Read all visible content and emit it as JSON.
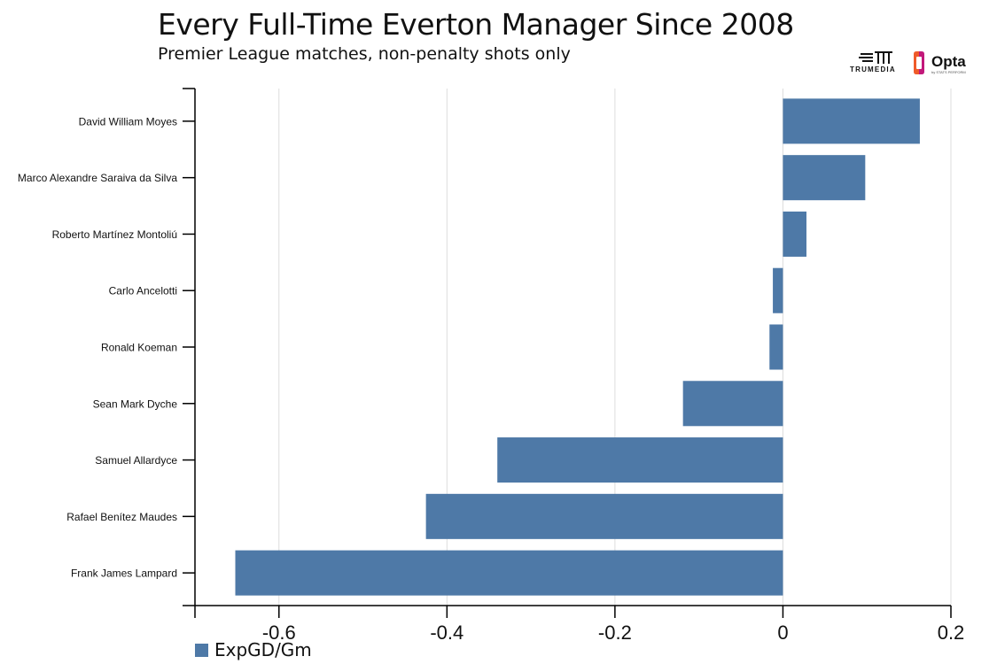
{
  "header": {
    "title": "Every Full-Time Everton Manager Since 2008",
    "subtitle": "Premier League matches, non-penalty shots only"
  },
  "logos": {
    "trumedia_text": "TRUMEDIA",
    "opta_text": "Opta",
    "opta_sub": "by STATS PERFORM"
  },
  "colors": {
    "bar": "#4e79a7",
    "grid": "#dddddd",
    "axis": "#000000"
  },
  "chart_data": {
    "type": "bar",
    "orientation": "horizontal",
    "categories": [
      "David William Moyes",
      "Marco Alexandre Saraiva da Silva",
      "Roberto Martínez Montoliú",
      "Carlo Ancelotti",
      "Ronald Koeman",
      "Sean Mark Dyche",
      "Samuel Allardyce",
      "Rafael Benítez Maudes",
      "Frank James Lampard"
    ],
    "series": [
      {
        "name": "ExpGD/Gm",
        "values": [
          0.163,
          0.098,
          0.028,
          -0.012,
          -0.016,
          -0.119,
          -0.34,
          -0.425,
          -0.652
        ]
      }
    ],
    "xlim": [
      -0.7,
      0.2
    ],
    "xticks": [
      -0.6,
      -0.4,
      -0.2,
      0,
      0.2
    ],
    "xtick_labels": [
      "-0.6",
      "-0.4",
      "-0.2",
      "0",
      "0.2"
    ],
    "grid": "vertical",
    "legend_position": "bottom-left"
  }
}
